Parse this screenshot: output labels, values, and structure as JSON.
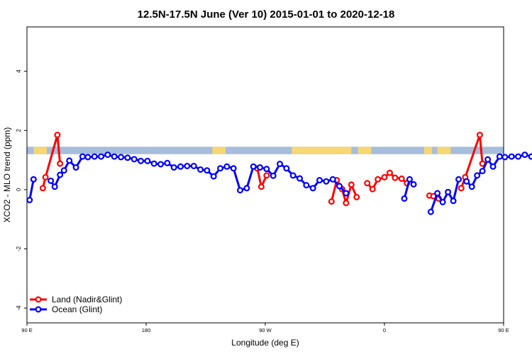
{
  "chart_data": {
    "type": "line",
    "title": "12.5N-17.5N June (Ver 10)   2015-01-01 to 2020-12-18",
    "xlabel": "Longitude (deg E)",
    "ylabel": "XCO2 - MLO trend (ppm)",
    "xlim": [
      90,
      450
    ],
    "ylim": [
      -4.5,
      5.5
    ],
    "x_ticks": [
      90,
      180,
      270,
      360,
      450,
      540
    ],
    "x_tick_labels": [
      "90 E",
      "180",
      "90 W",
      "0",
      "90 E",
      "180"
    ],
    "y_ticks": [
      -4,
      -2,
      0,
      2,
      4
    ],
    "y_tick_labels": [
      "-4",
      "-2",
      "0",
      "2",
      "4"
    ],
    "landmask_strip": {
      "y_range": [
        1.2,
        1.45
      ],
      "ocean_color": "#a6bddb",
      "land_color": "#f7d774",
      "land_spans": [
        [
          95,
          105
        ],
        [
          230,
          240
        ],
        [
          290,
          335
        ],
        [
          340,
          350
        ],
        [
          390,
          396
        ],
        [
          400,
          410
        ]
      ]
    },
    "legend": {
      "position": "bottom-left",
      "entries": [
        {
          "label": "Land (Nadir&Glint)",
          "color": "#ff0000"
        },
        {
          "label": "Ocean (Glint)",
          "color": "#0000ff"
        }
      ]
    },
    "series": [
      {
        "name": "Land (Nadir&Glint)",
        "color": "#ff0000",
        "segments": [
          [
            [
              102,
              0.05
            ],
            [
              104,
              0.42
            ],
            [
              113,
              1.85
            ],
            [
              115,
              0.88
            ]
          ],
          [
            [
              264,
              0.72
            ],
            [
              267,
              0.1
            ],
            [
              271,
              0.48
            ]
          ],
          [
            [
              320,
              -0.4
            ],
            [
              324,
              0.32
            ],
            [
              328,
              0.02
            ],
            [
              331,
              -0.45
            ],
            [
              335,
              0.17
            ],
            [
              339,
              -0.25
            ]
          ],
          [
            [
              347,
              0.22
            ],
            [
              351,
              0.02
            ],
            [
              355,
              0.35
            ],
            [
              360,
              0.42
            ],
            [
              364,
              0.57
            ],
            [
              368,
              0.4
            ],
            [
              373,
              0.37
            ],
            [
              377,
              0.22
            ]
          ],
          [
            [
              394,
              -0.2
            ],
            [
              397,
              -0.22
            ],
            [
              401,
              -0.3
            ]
          ],
          [
            [
              418,
              0.05
            ],
            [
              421,
              0.42
            ],
            [
              432,
              1.85
            ],
            [
              434,
              0.88
            ]
          ]
        ]
      },
      {
        "name": "Ocean (Glint)",
        "color": "#0000ff",
        "segments": [
          [
            [
              92,
              -0.35
            ],
            [
              95,
              0.35
            ]
          ],
          [
            [
              108,
              0.3
            ],
            [
              111,
              0.1
            ],
            [
              115,
              0.5
            ],
            [
              118,
              0.65
            ],
            [
              122,
              0.98
            ],
            [
              127,
              0.75
            ],
            [
              132,
              1.12
            ],
            [
              136,
              1.1
            ],
            [
              141,
              1.12
            ],
            [
              146,
              1.12
            ],
            [
              151,
              1.18
            ],
            [
              156,
              1.12
            ],
            [
              161,
              1.1
            ],
            [
              166,
              1.08
            ],
            [
              171,
              1.03
            ],
            [
              176,
              0.97
            ],
            [
              181,
              0.97
            ],
            [
              186,
              0.88
            ],
            [
              191,
              0.86
            ],
            [
              196,
              0.9
            ],
            [
              201,
              0.75
            ],
            [
              206,
              0.78
            ],
            [
              211,
              0.8
            ],
            [
              216,
              0.8
            ],
            [
              221,
              0.68
            ],
            [
              226,
              0.65
            ],
            [
              231,
              0.45
            ],
            [
              236,
              0.72
            ],
            [
              241,
              0.78
            ],
            [
              246,
              0.72
            ],
            [
              251,
              -0.02
            ],
            [
              256,
              0.05
            ],
            [
              261,
              0.78
            ],
            [
              266,
              0.75
            ],
            [
              271,
              0.7
            ],
            [
              276,
              0.47
            ],
            [
              281,
              0.87
            ],
            [
              286,
              0.72
            ],
            [
              291,
              0.48
            ],
            [
              296,
              0.38
            ],
            [
              301,
              0.15
            ],
            [
              306,
              0.05
            ],
            [
              311,
              0.32
            ],
            [
              316,
              0.28
            ],
            [
              321,
              0.35
            ],
            [
              326,
              0.12
            ],
            [
              331,
              -0.12
            ]
          ],
          [
            [
              375,
              -0.3
            ],
            [
              379,
              0.35
            ],
            [
              382,
              0.18
            ]
          ],
          [
            [
              395,
              -0.75
            ],
            [
              400,
              -0.12
            ],
            [
              404,
              -0.42
            ],
            [
              408,
              -0.08
            ],
            [
              412,
              -0.38
            ],
            [
              416,
              0.35
            ]
          ],
          [
            [
              422,
              0.28
            ],
            [
              426,
              0.1
            ],
            [
              430,
              0.48
            ],
            [
              434,
              0.63
            ],
            [
              438,
              1.02
            ],
            [
              442,
              0.78
            ],
            [
              447,
              1.12
            ],
            [
              451,
              1.1
            ],
            [
              456,
              1.12
            ],
            [
              461,
              1.12
            ],
            [
              466,
              1.18
            ],
            [
              471,
              1.12
            ],
            [
              476,
              1.1
            ],
            [
              481,
              1.08
            ],
            [
              486,
              1.05
            ]
          ]
        ]
      }
    ]
  }
}
